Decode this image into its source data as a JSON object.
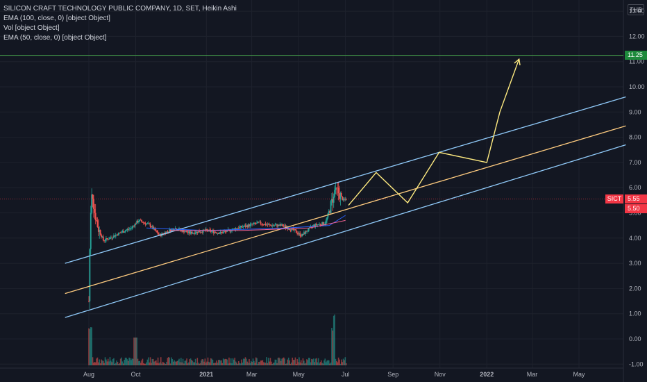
{
  "legend": {
    "title": "SILICON CRAFT TECHNOLOGY PUBLIC COMPANY, 1D, SET, Heikin Ashi",
    "ema100": "EMA (100, close, 0) [object Object]",
    "vol": "Vol [object Object]",
    "ema50": "EMA (50, close, 0) [object Object]"
  },
  "currency": "THB",
  "symbol": "SICT",
  "price_label": "5.55",
  "price_label_2": "5.50",
  "target_label": "11.25",
  "colors": {
    "background": "#131722",
    "up": "#26a69a",
    "down": "#ef5350",
    "channel": "#90caf9",
    "midline": "#ffcc80",
    "projection": "#ffeb80",
    "target": "#4caf50",
    "price": "#f23645"
  },
  "chart_data": {
    "type": "candlestick",
    "y_axis": {
      "ticks": [
        -1,
        0,
        1,
        2,
        3,
        4,
        5,
        6,
        7,
        8,
        9,
        10,
        11,
        12,
        13
      ],
      "labels": [
        "-1.00",
        "0.00",
        "1.00",
        "2.00",
        "3.00",
        "4.00",
        "5.00",
        "6.00",
        "7.00",
        "8.00",
        "9.00",
        "10.00",
        "11.00",
        "12.00",
        "13.00"
      ]
    },
    "x_axis": {
      "labels": [
        "Aug",
        "Oct",
        "2021",
        "Mar",
        "May",
        "Jul",
        "Sep",
        "Nov",
        "2022",
        "Mar",
        "May"
      ],
      "bold": [
        "2021",
        "2022"
      ],
      "dates": [
        "2020-08-01",
        "2020-10-01",
        "2021-01-01",
        "2021-03-01",
        "2021-05-01",
        "2021-07-01",
        "2021-09-01",
        "2021-11-01",
        "2022-01-01",
        "2022-03-01",
        "2022-05-01"
      ]
    },
    "price_path": [
      [
        "2020-08-01",
        1.5
      ],
      [
        "2020-08-03",
        4.8
      ],
      [
        "2020-08-05",
        6.0
      ],
      [
        "2020-08-08",
        5.1
      ],
      [
        "2020-08-13",
        4.4
      ],
      [
        "2020-08-20",
        3.9
      ],
      [
        "2020-08-28",
        4.0
      ],
      [
        "2020-09-10",
        4.2
      ],
      [
        "2020-09-25",
        4.4
      ],
      [
        "2020-10-05",
        4.7
      ],
      [
        "2020-10-20",
        4.5
      ],
      [
        "2020-11-01",
        4.1
      ],
      [
        "2020-11-20",
        4.4
      ],
      [
        "2020-12-10",
        4.2
      ],
      [
        "2021-01-01",
        4.3
      ],
      [
        "2021-01-20",
        4.2
      ],
      [
        "2021-02-10",
        4.4
      ],
      [
        "2021-02-25",
        4.5
      ],
      [
        "2021-03-10",
        4.6
      ],
      [
        "2021-03-25",
        4.5
      ],
      [
        "2021-04-10",
        4.5
      ],
      [
        "2021-04-25",
        4.3
      ],
      [
        "2021-05-05",
        4.1
      ],
      [
        "2021-05-20",
        4.5
      ],
      [
        "2021-06-05",
        4.6
      ],
      [
        "2021-06-15",
        5.6
      ],
      [
        "2021-06-20",
        5.9
      ],
      [
        "2021-06-28",
        5.5
      ],
      [
        "2021-07-02",
        5.55
      ]
    ],
    "ema_short": [
      [
        "2020-10-15",
        4.4
      ],
      [
        "2021-01-01",
        4.3
      ],
      [
        "2021-04-15",
        4.4
      ],
      [
        "2021-06-10",
        4.5
      ],
      [
        "2021-07-01",
        4.9
      ]
    ],
    "ema_long": [
      [
        "2020-11-15",
        4.3
      ],
      [
        "2021-02-15",
        4.3
      ],
      [
        "2021-05-15",
        4.4
      ],
      [
        "2021-07-01",
        4.7
      ]
    ],
    "channel_upper": [
      [
        "2020-07-01",
        3.0
      ],
      [
        "2022-07-01",
        9.6
      ]
    ],
    "channel_mid": [
      [
        "2020-07-01",
        1.8
      ],
      [
        "2022-07-01",
        8.45
      ]
    ],
    "channel_lower": [
      [
        "2020-07-01",
        0.85
      ],
      [
        "2022-07-01",
        7.7
      ]
    ],
    "projection": [
      [
        "2021-07-05",
        5.3
      ],
      [
        "2021-08-10",
        6.6
      ],
      [
        "2021-09-20",
        5.4
      ],
      [
        "2021-10-31",
        7.4
      ],
      [
        "2022-01-01",
        7.0
      ],
      [
        "2022-01-18",
        9.0
      ],
      [
        "2022-02-12",
        11.1
      ]
    ],
    "target_level": 11.25,
    "current_price": 5.55,
    "volume_axis": "below price, bars on baseline near -1.00"
  }
}
